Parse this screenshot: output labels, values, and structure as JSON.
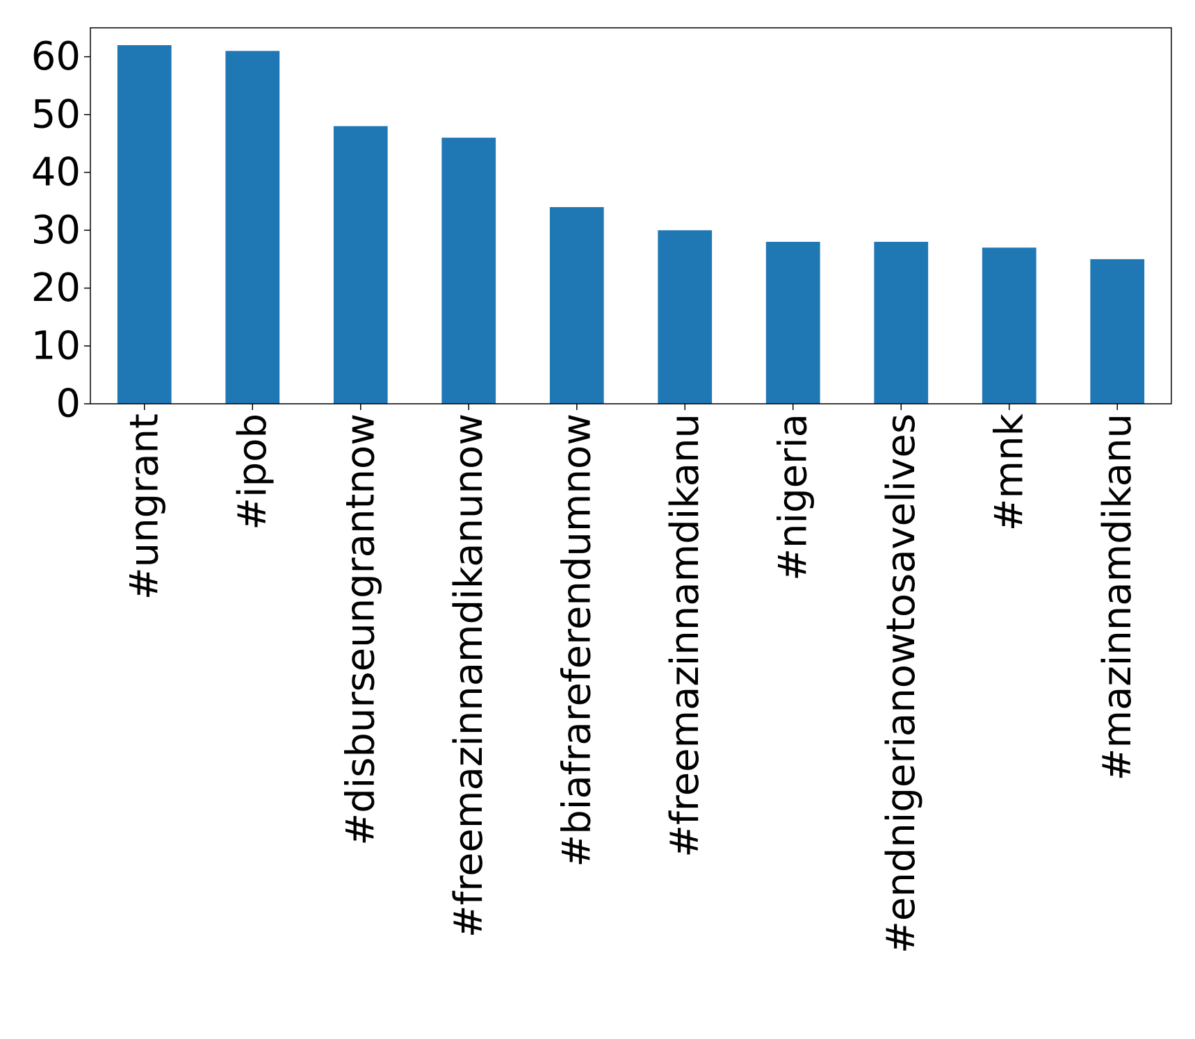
{
  "chart_data": {
    "type": "bar",
    "categories": [
      "#ungrant",
      "#ipob",
      "#disburseungrantnow",
      "#freemazinnamdikanunow",
      "#biafrareferendumnow",
      "#freemazinnamdikanu",
      "#nigeria",
      "#endnigerianowtosavelives",
      "#mnk",
      "#mazinnamdikanu"
    ],
    "values": [
      62,
      61,
      48,
      46,
      34,
      30,
      28,
      28,
      27,
      25
    ],
    "title": "",
    "xlabel": "",
    "ylabel": "",
    "ylim": [
      0,
      65
    ],
    "yticks": [
      0,
      10,
      20,
      30,
      40,
      50,
      60
    ],
    "grid": false,
    "bar_color": "#1f77b4"
  }
}
